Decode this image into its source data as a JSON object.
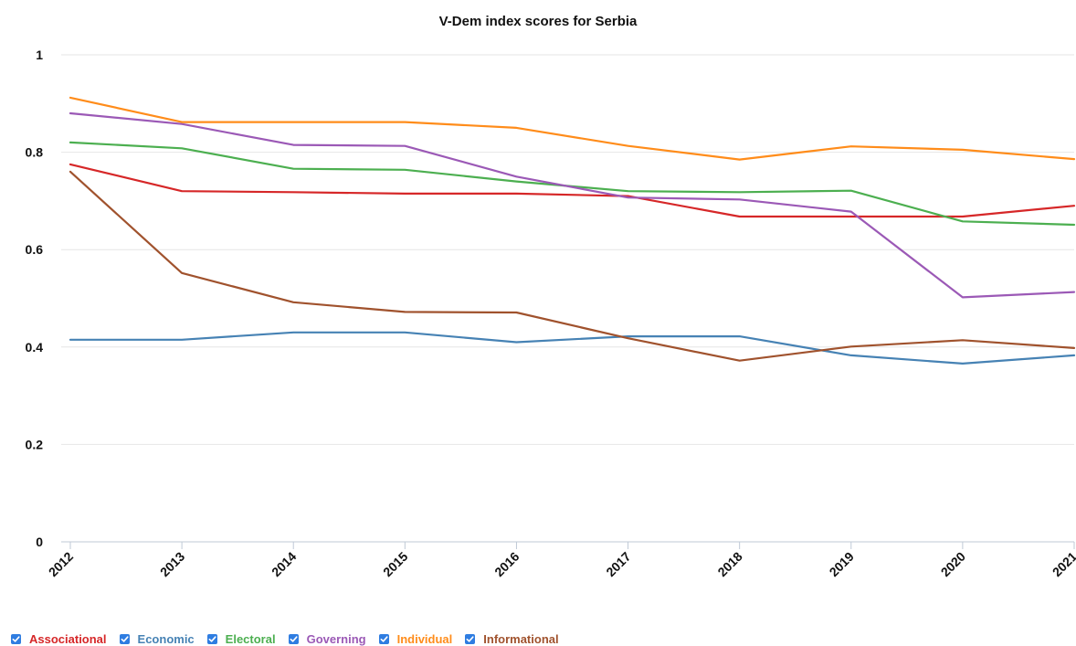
{
  "chart_data": {
    "type": "line",
    "title": "V-Dem index scores for Serbia",
    "xlabel": "",
    "ylabel": "",
    "x": [
      "2012",
      "2013",
      "2014",
      "2015",
      "2016",
      "2017",
      "2018",
      "2019",
      "2020",
      "2021"
    ],
    "ylim": [
      0,
      1
    ],
    "y_ticks": [
      "0",
      "0.2",
      "0.4",
      "0.6",
      "0.8",
      "1"
    ],
    "grid": true,
    "legend_position": "bottom-left",
    "series": [
      {
        "name": "Associational",
        "color": "#d62728",
        "values": [
          0.775,
          0.72,
          0.718,
          0.715,
          0.715,
          0.71,
          0.668,
          0.668,
          0.668,
          0.69
        ]
      },
      {
        "name": "Economic",
        "color": "#4682b4",
        "values": [
          0.415,
          0.415,
          0.43,
          0.43,
          0.41,
          0.422,
          0.422,
          0.383,
          0.366,
          0.383
        ]
      },
      {
        "name": "Electoral",
        "color": "#4caf50",
        "values": [
          0.82,
          0.808,
          0.766,
          0.764,
          0.74,
          0.72,
          0.718,
          0.721,
          0.658,
          0.651
        ]
      },
      {
        "name": "Governing",
        "color": "#9b59b6",
        "values": [
          0.88,
          0.858,
          0.815,
          0.813,
          0.75,
          0.707,
          0.703,
          0.678,
          0.502,
          0.513
        ]
      },
      {
        "name": "Individual",
        "color": "#ff8c1a",
        "values": [
          0.912,
          0.862,
          0.862,
          0.862,
          0.85,
          0.813,
          0.785,
          0.812,
          0.805,
          0.786
        ]
      },
      {
        "name": "Informational",
        "color": "#a0522d",
        "values": [
          0.76,
          0.552,
          0.492,
          0.472,
          0.471,
          0.418,
          0.372,
          0.401,
          0.414,
          0.398
        ]
      }
    ]
  }
}
